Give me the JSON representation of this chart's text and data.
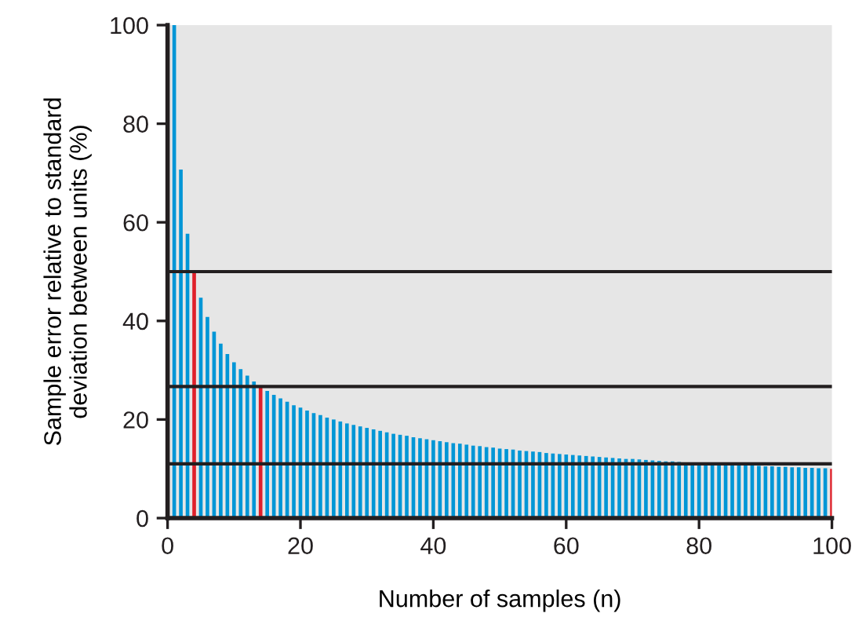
{
  "chart_data": {
    "type": "bar",
    "xlabel": "Number of samples (n)",
    "ylabel": "Sample error relative to standard\ndeviation between units (%)",
    "x": [
      1,
      2,
      3,
      4,
      5,
      6,
      7,
      8,
      9,
      10,
      11,
      12,
      13,
      14,
      15,
      16,
      17,
      18,
      19,
      20,
      21,
      22,
      23,
      24,
      25,
      26,
      27,
      28,
      29,
      30,
      31,
      32,
      33,
      34,
      35,
      36,
      37,
      38,
      39,
      40,
      41,
      42,
      43,
      44,
      45,
      46,
      47,
      48,
      49,
      50,
      51,
      52,
      53,
      54,
      55,
      56,
      57,
      58,
      59,
      60,
      61,
      62,
      63,
      64,
      65,
      66,
      67,
      68,
      69,
      70,
      71,
      72,
      73,
      74,
      75,
      76,
      77,
      78,
      79,
      80,
      81,
      82,
      83,
      84,
      85,
      86,
      87,
      88,
      89,
      90,
      91,
      92,
      93,
      94,
      95,
      96,
      97,
      98,
      99,
      100
    ],
    "values": [
      100,
      70.7,
      57.7,
      50,
      44.7,
      40.8,
      37.8,
      35.4,
      33.3,
      31.6,
      30.2,
      28.9,
      27.7,
      26.7,
      25.8,
      25,
      24.3,
      23.6,
      22.9,
      22.4,
      21.8,
      21.3,
      20.9,
      20.4,
      20,
      19.6,
      19.2,
      18.9,
      18.6,
      18.3,
      18,
      17.7,
      17.4,
      17.1,
      16.9,
      16.7,
      16.4,
      16.2,
      16,
      15.8,
      15.6,
      15.4,
      15.2,
      15.1,
      14.9,
      14.7,
      14.6,
      14.4,
      14.3,
      14.1,
      14,
      13.9,
      13.7,
      13.6,
      13.5,
      13.4,
      13.2,
      13.1,
      13,
      12.9,
      12.8,
      12.7,
      12.6,
      12.5,
      12.4,
      12.3,
      12.2,
      12.1,
      12,
      12,
      11.9,
      11.8,
      11.7,
      11.6,
      11.5,
      11.5,
      11.4,
      11.3,
      11.3,
      11.2,
      11.1,
      11,
      11,
      10.9,
      10.8,
      10.8,
      10.7,
      10.7,
      10.6,
      10.5,
      10.5,
      10.4,
      10.4,
      10.3,
      10.3,
      10.2,
      10.2,
      10.1,
      10.1,
      10
    ],
    "colors": [
      "#0096d6",
      "#0096d6",
      "#0096d6",
      "#e0202a",
      "#0096d6",
      "#0096d6",
      "#0096d6",
      "#0096d6",
      "#0096d6",
      "#0096d6",
      "#0096d6",
      "#0096d6",
      "#0096d6",
      "#e0202a",
      "#0096d6",
      "#0096d6",
      "#0096d6",
      "#0096d6",
      "#0096d6",
      "#0096d6",
      "#0096d6",
      "#0096d6",
      "#0096d6",
      "#0096d6",
      "#0096d6",
      "#0096d6",
      "#0096d6",
      "#0096d6",
      "#0096d6",
      "#0096d6",
      "#0096d6",
      "#0096d6",
      "#0096d6",
      "#0096d6",
      "#0096d6",
      "#0096d6",
      "#0096d6",
      "#0096d6",
      "#0096d6",
      "#0096d6",
      "#0096d6",
      "#0096d6",
      "#0096d6",
      "#0096d6",
      "#0096d6",
      "#0096d6",
      "#0096d6",
      "#0096d6",
      "#0096d6",
      "#0096d6",
      "#0096d6",
      "#0096d6",
      "#0096d6",
      "#0096d6",
      "#0096d6",
      "#0096d6",
      "#0096d6",
      "#0096d6",
      "#0096d6",
      "#0096d6",
      "#0096d6",
      "#0096d6",
      "#0096d6",
      "#0096d6",
      "#0096d6",
      "#0096d6",
      "#0096d6",
      "#0096d6",
      "#0096d6",
      "#0096d6",
      "#0096d6",
      "#0096d6",
      "#0096d6",
      "#0096d6",
      "#0096d6",
      "#0096d6",
      "#0096d6",
      "#0096d6",
      "#0096d6",
      "#0096d6",
      "#0096d6",
      "#0096d6",
      "#0096d6",
      "#0096d6",
      "#0096d6",
      "#0096d6",
      "#0096d6",
      "#0096d6",
      "#0096d6",
      "#0096d6",
      "#0096d6",
      "#0096d6",
      "#0096d6",
      "#0096d6",
      "#0096d6",
      "#0096d6",
      "#0096d6",
      "#0096d6",
      "#0096d6",
      "#e0202a"
    ],
    "xlim": [
      0,
      100
    ],
    "xticks": [
      0,
      20,
      40,
      60,
      80,
      100
    ],
    "ylim": [
      0,
      100
    ],
    "yticks": [
      0,
      20,
      40,
      60,
      80,
      100
    ],
    "ref_lines": [
      {
        "axis": "y",
        "value": 50,
        "color": "#231f20"
      },
      {
        "axis": "y",
        "value": 26.7,
        "color": "#231f20"
      },
      {
        "axis": "y",
        "value": 11,
        "color": "#231f20"
      }
    ],
    "grid": false,
    "legend": false
  }
}
